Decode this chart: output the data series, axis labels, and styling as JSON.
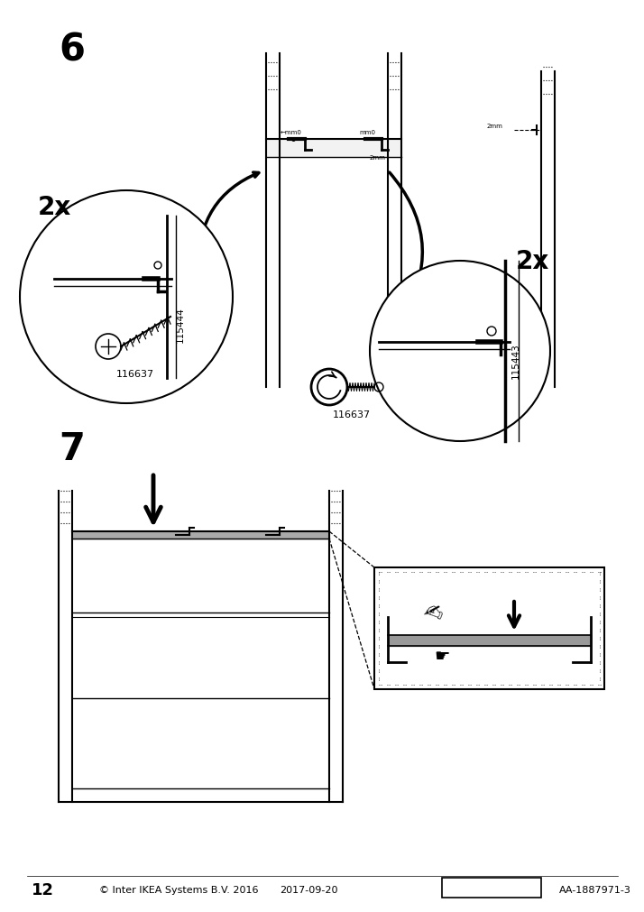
{
  "bg_color": "#ffffff",
  "page_number": "12",
  "copyright": "© Inter IKEA Systems B.V. 2016",
  "date": "2017-09-20",
  "product_code": "AA-1887971-3",
  "step6_label": "6",
  "step7_label": "7",
  "qty_label": "2x",
  "part1": "115444",
  "part2": "115443",
  "screw": "116637"
}
